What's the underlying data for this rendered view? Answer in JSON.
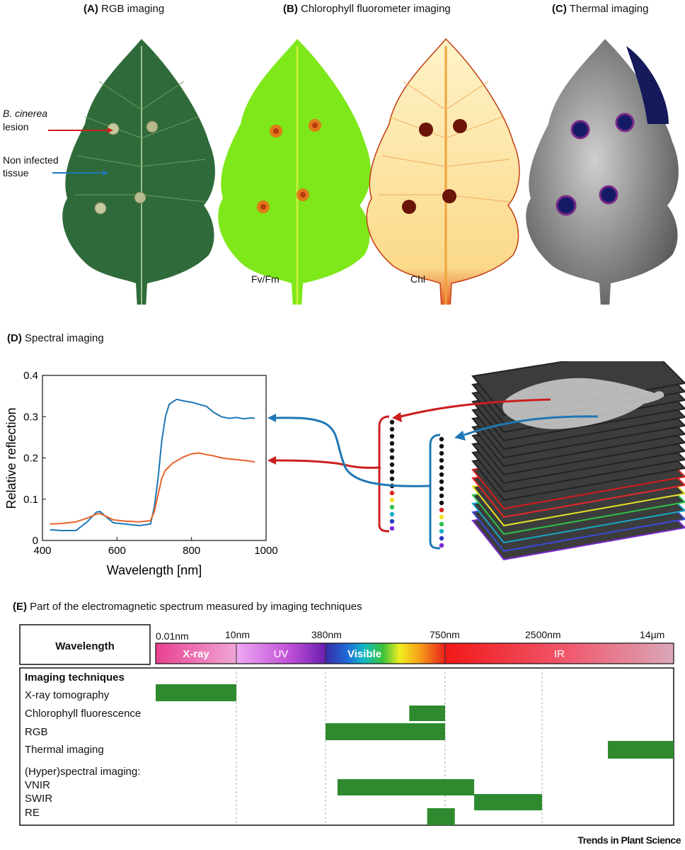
{
  "panels": {
    "a": {
      "tag": "(A)",
      "title": "RGB imaging"
    },
    "b": {
      "tag": "(B)",
      "title": "Chlorophyll fluorometer imaging"
    },
    "c": {
      "tag": "(C)",
      "title": "Thermal imaging"
    },
    "d": {
      "tag": "(D)",
      "title": "Spectral imaging"
    },
    "e": {
      "tag": "(E)",
      "title": "Part of the electromagnetic spectrum measured by imaging techniques"
    }
  },
  "annotations": {
    "lesion_species": "B. cinerea",
    "lesion_word": "lesion",
    "non_infected_line1": "Non infected",
    "non_infected_line2": "tissue",
    "fvfm": "Fv/Fm",
    "chl": "Chl"
  },
  "colors": {
    "leaf_green": "#2f6b3a",
    "fluor_green": "#7ee81a",
    "chl_yellow": "#fde9a8",
    "blue_curve": "#1f77b4",
    "orange_curve": "#e8622a",
    "red_arrow": "#cc1f1f",
    "bar_green": "#2f8a2f"
  },
  "chart_data": {
    "type": "line",
    "xlabel": "Wavelength [nm]",
    "ylabel": "Relative reflection",
    "xlim": [
      400,
      1000
    ],
    "ylim": [
      0,
      0.4
    ],
    "xticks": [
      400,
      600,
      800,
      1000
    ],
    "yticks": [
      0,
      0.1,
      0.2,
      0.3,
      0.4
    ],
    "ytick_labels": [
      "0",
      "0.1",
      "0.2",
      "0.3",
      "0.4"
    ],
    "series": [
      {
        "name": "Non infected tissue",
        "color": "#1f77b4",
        "x": [
          420,
          450,
          490,
          520,
          545,
          555,
          570,
          590,
          620,
          660,
          690,
          700,
          710,
          720,
          730,
          740,
          760,
          780,
          800,
          820,
          840,
          860,
          880,
          900,
          920,
          940,
          960,
          970
        ],
        "y": [
          0.026,
          0.024,
          0.024,
          0.045,
          0.069,
          0.07,
          0.058,
          0.043,
          0.04,
          0.036,
          0.04,
          0.08,
          0.15,
          0.24,
          0.3,
          0.33,
          0.342,
          0.338,
          0.335,
          0.33,
          0.325,
          0.31,
          0.3,
          0.296,
          0.298,
          0.295,
          0.297,
          0.296
        ]
      },
      {
        "name": "B. cinerea lesion",
        "color": "#e8622a",
        "x": [
          420,
          450,
          490,
          520,
          545,
          555,
          570,
          590,
          620,
          660,
          690,
          700,
          710,
          720,
          730,
          750,
          780,
          800,
          820,
          840,
          860,
          880,
          900,
          920,
          940,
          960,
          970
        ],
        "y": [
          0.04,
          0.041,
          0.045,
          0.054,
          0.064,
          0.065,
          0.059,
          0.05,
          0.047,
          0.045,
          0.048,
          0.07,
          0.11,
          0.15,
          0.17,
          0.188,
          0.203,
          0.21,
          0.212,
          0.208,
          0.205,
          0.2,
          0.198,
          0.196,
          0.194,
          0.192,
          0.19
        ]
      }
    ]
  },
  "spectrum": {
    "row_label": "Wavelength",
    "ticks": [
      "0.01nm",
      "10nm",
      "380nm",
      "750nm",
      "2500nm",
      "14µm"
    ],
    "bands": [
      "X-ray",
      "UV",
      "Visible",
      "IR"
    ]
  },
  "techniques": {
    "heading": "Imaging techniques",
    "rows": [
      {
        "label": "X-ray tomography",
        "start": 0.0,
        "end": 1.0
      },
      {
        "label": "Chlorophyll fluorescence",
        "start": 2.7,
        "end": 3.0
      },
      {
        "label": "RGB",
        "start": 2.0,
        "end": 3.0
      },
      {
        "label": "Thermal imaging",
        "start": 4.5,
        "end": 5.0
      },
      {
        "label": "(Hyper)spectral imaging:",
        "start": null,
        "end": null
      },
      {
        "label": "VNIR",
        "start": 2.1,
        "end": 3.3
      },
      {
        "label": "SWIR",
        "start": 3.3,
        "end": 4.0
      },
      {
        "label": "RE",
        "start": 2.85,
        "end": 3.1
      }
    ]
  },
  "footer": {
    "source": "Trends in Plant Science"
  }
}
